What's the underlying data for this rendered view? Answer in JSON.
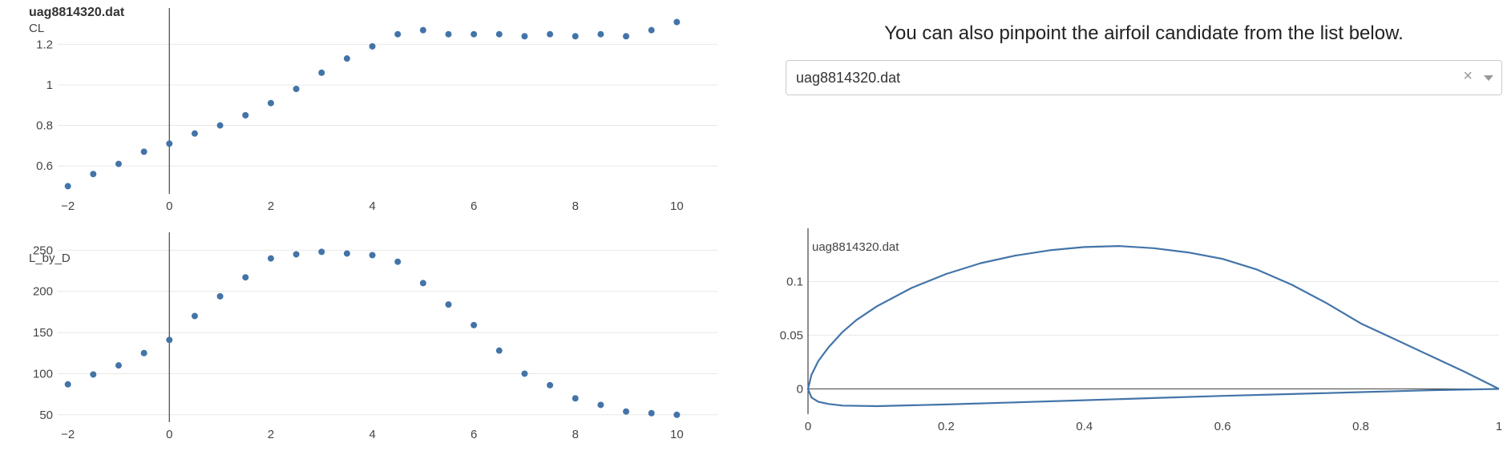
{
  "heading": "You can also pinpoint the airfoil candidate from the list below.",
  "selector": {
    "value": "uag8814320.dat",
    "clear_symbol": "×"
  },
  "colors": {
    "series": "#4374a8",
    "grid": "#e8e8e8",
    "axis": "#444444"
  },
  "chart_data": [
    {
      "type": "scatter",
      "title": "uag8814320.dat",
      "ylabel": "CL",
      "xlim": [
        -2.2,
        10.8
      ],
      "ylim": [
        0.47,
        1.32
      ],
      "xticks": [
        -2,
        0,
        2,
        4,
        6,
        8,
        10
      ],
      "yticks": [
        0.6,
        0.8,
        1,
        1.2
      ],
      "ytick_labels": [
        "0.6",
        "0.8",
        "1",
        "1.2"
      ],
      "grid": true,
      "x": [
        -2,
        -1.5,
        -1,
        -0.5,
        0,
        0.5,
        1,
        1.5,
        2,
        2.5,
        3,
        3.5,
        4,
        4.5,
        5,
        5.5,
        6,
        6.5,
        7,
        7.5,
        8,
        8.5,
        9,
        9.5,
        10
      ],
      "y": [
        0.5,
        0.56,
        0.61,
        0.67,
        0.71,
        0.76,
        0.8,
        0.85,
        0.91,
        0.98,
        1.06,
        1.13,
        1.19,
        1.25,
        1.27,
        1.25,
        1.25,
        1.25,
        1.24,
        1.25,
        1.24,
        1.25,
        1.24,
        1.27,
        1.31
      ]
    },
    {
      "type": "scatter",
      "ylabel": "L_by_D",
      "xlim": [
        -2.2,
        10.8
      ],
      "ylim": [
        43,
        262
      ],
      "xticks": [
        -2,
        0,
        2,
        4,
        6,
        8,
        10
      ],
      "yticks": [
        50,
        100,
        150,
        200,
        250
      ],
      "ytick_labels": [
        "50",
        "100",
        "150",
        "200",
        "250"
      ],
      "grid": true,
      "x": [
        -2,
        -1.5,
        -1,
        -0.5,
        0,
        0.5,
        1,
        1.5,
        2,
        2.5,
        3,
        3.5,
        4,
        4.5,
        5,
        5.5,
        6,
        6.5,
        7,
        7.5,
        8,
        8.5,
        9,
        9.5,
        10
      ],
      "y": [
        87,
        99,
        110,
        125,
        141,
        170,
        194,
        217,
        240,
        245,
        248,
        246,
        244,
        236,
        210,
        184,
        159,
        128,
        100,
        86,
        70,
        62,
        54,
        52,
        50
      ]
    },
    {
      "type": "line",
      "title": "uag8814320.dat",
      "xlim": [
        0,
        1.0
      ],
      "ylim": [
        -0.022,
        0.142
      ],
      "xticks": [
        0,
        0.2,
        0.4,
        0.6,
        0.8,
        1
      ],
      "xtick_labels": [
        "0",
        "0.2",
        "0.4",
        "0.6",
        "0.8",
        "1"
      ],
      "yticks": [
        0,
        0.05,
        0.1
      ],
      "ytick_labels": [
        "0",
        "0.05",
        "0.1"
      ],
      "grid": true,
      "x": [
        1.0,
        0.95,
        0.9,
        0.85,
        0.8,
        0.75,
        0.7,
        0.65,
        0.6,
        0.55,
        0.5,
        0.45,
        0.4,
        0.35,
        0.3,
        0.25,
        0.2,
        0.15,
        0.1,
        0.07,
        0.05,
        0.03,
        0.015,
        0.005,
        0.0,
        0.005,
        0.015,
        0.03,
        0.05,
        0.1,
        0.2,
        0.3,
        0.4,
        0.5,
        0.6,
        0.7,
        0.8,
        0.9,
        1.0
      ],
      "y": [
        0.0,
        0.016,
        0.031,
        0.046,
        0.061,
        0.08,
        0.097,
        0.111,
        0.121,
        0.127,
        0.131,
        0.133,
        0.132,
        0.129,
        0.124,
        0.117,
        0.107,
        0.094,
        0.077,
        0.064,
        0.053,
        0.039,
        0.026,
        0.013,
        0.0,
        -0.008,
        -0.012,
        -0.014,
        -0.0155,
        -0.016,
        -0.0145,
        -0.0125,
        -0.0105,
        -0.0085,
        -0.0065,
        -0.0048,
        -0.003,
        -0.0013,
        0.0
      ]
    }
  ]
}
